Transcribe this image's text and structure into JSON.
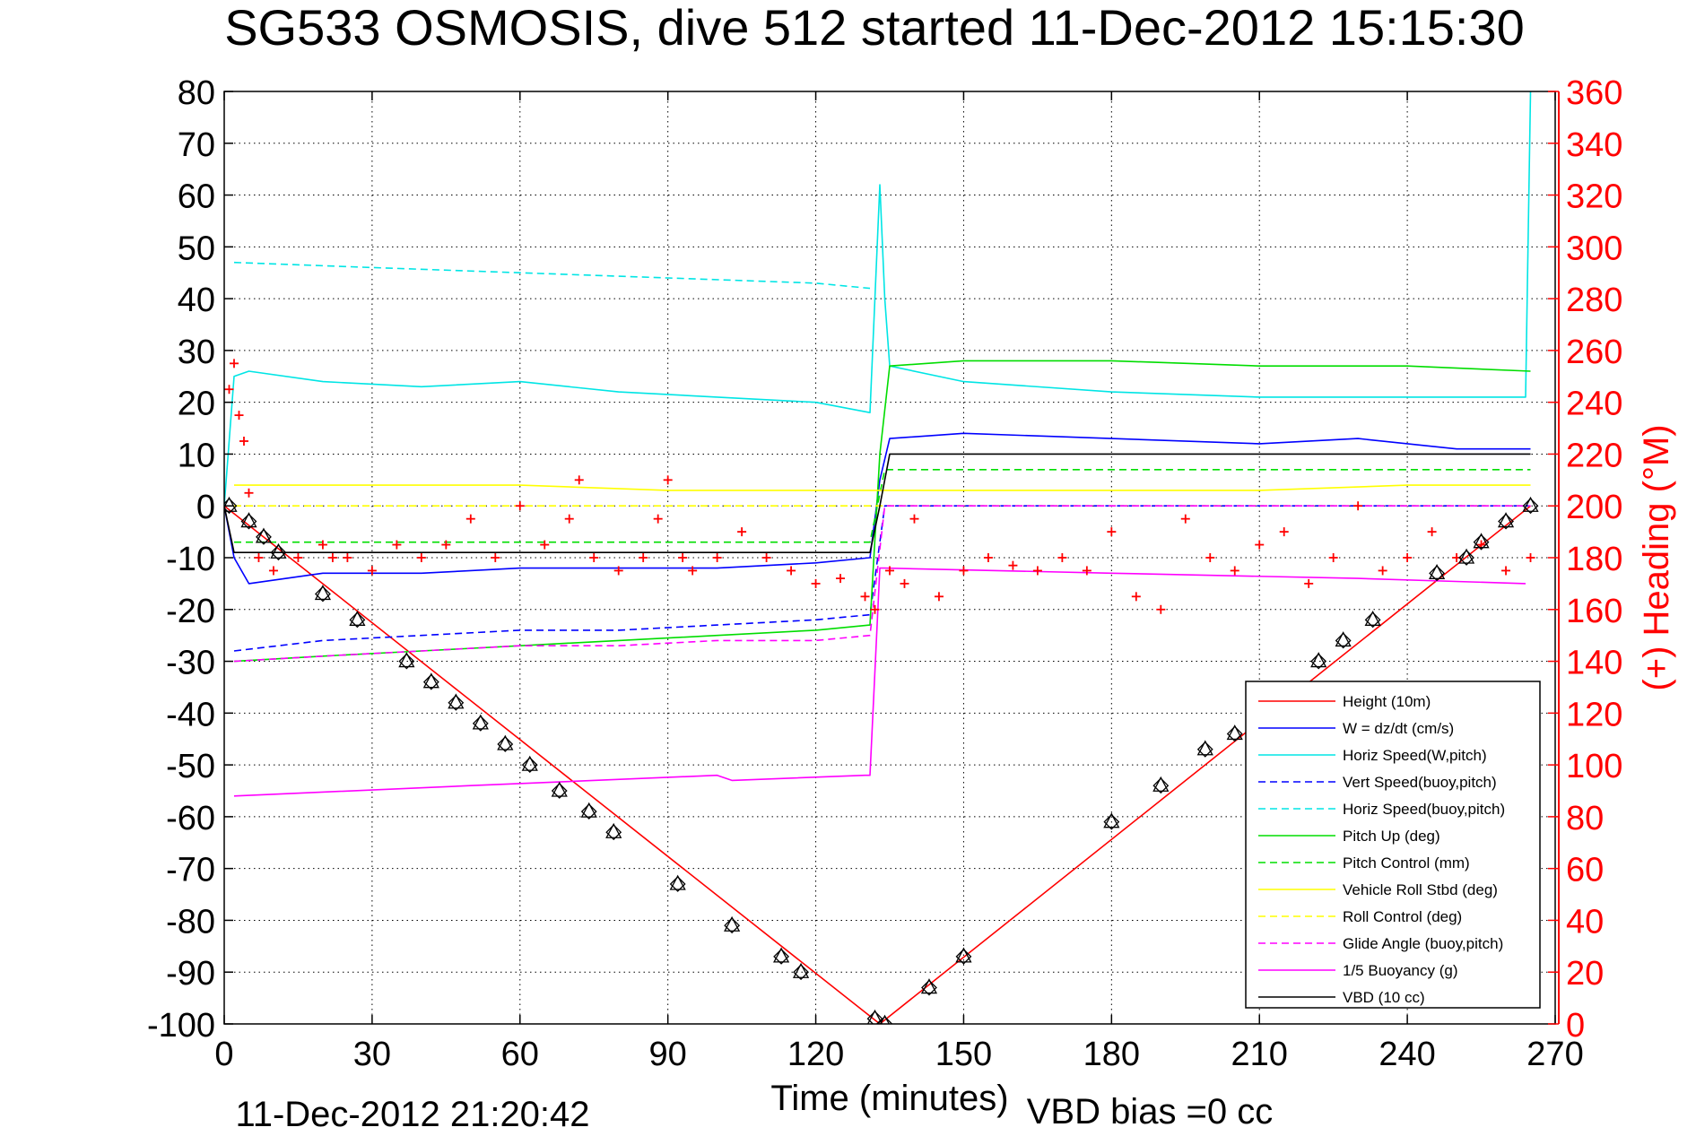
{
  "chart_data": {
    "type": "line",
    "title": "SG533 OSMOSIS, dive 512 started 11-Dec-2012 15:15:30",
    "xlabel": "Time (minutes)",
    "ylabel_right": "(+) Heading (°M)",
    "footer_timestamp": "11-Dec-2012 21:20:42",
    "footer_vbd_bias": "VBD bias =0 cc",
    "xlim": [
      0,
      270
    ],
    "ylim": [
      -100,
      80
    ],
    "ylim_right": [
      0,
      360
    ],
    "x_ticks": [
      0,
      30,
      60,
      90,
      120,
      150,
      180,
      210,
      240,
      270
    ],
    "y_ticks": [
      80,
      70,
      60,
      50,
      40,
      30,
      20,
      10,
      0,
      -10,
      -20,
      -30,
      -40,
      -50,
      -60,
      -70,
      -80,
      -90,
      -100
    ],
    "y_right_ticks": [
      360,
      340,
      320,
      300,
      280,
      260,
      240,
      220,
      200,
      180,
      160,
      140,
      120,
      100,
      80,
      60,
      40,
      20,
      0
    ],
    "grid": true,
    "legend_position": "bottom-right",
    "colors": {
      "height": "#ff0000",
      "w": "#0000ff",
      "horiz_speed": "#00e5e5",
      "pitch": "#00dd00",
      "roll": "#ffff00",
      "glide": "#ff00ff",
      "buoyancy": "#ff00ff",
      "vbd": "#000000",
      "heading": "#ff0000",
      "right_axis": "#ff0000"
    },
    "series": [
      {
        "name": "Height (10m)",
        "style": "solid",
        "color": "#ff0000",
        "x": [
          0,
          133,
          265
        ],
        "y": [
          0,
          -100,
          0
        ]
      },
      {
        "name": "W = dz/dt (cm/s)",
        "style": "solid",
        "color": "#0000ff",
        "x": [
          0,
          2,
          5,
          20,
          40,
          60,
          80,
          100,
          120,
          131,
          133,
          135,
          150,
          180,
          210,
          230,
          250,
          265
        ],
        "y": [
          0,
          -10,
          -15,
          -13,
          -13,
          -12,
          -12,
          -12,
          -11,
          -10,
          5,
          13,
          14,
          13,
          12,
          13,
          11,
          11
        ]
      },
      {
        "name": "Horiz Speed(W,pitch)",
        "style": "solid",
        "color": "#00e5e5",
        "x": [
          0,
          2,
          5,
          20,
          40,
          60,
          80,
          100,
          120,
          131,
          133,
          134,
          135,
          150,
          180,
          210,
          230,
          250,
          264,
          265
        ],
        "y": [
          0,
          25,
          26,
          24,
          23,
          24,
          22,
          21,
          20,
          18,
          62,
          40,
          27,
          24,
          22,
          21,
          21,
          21,
          21,
          80
        ]
      },
      {
        "name": "Vert Speed(buoy,pitch)",
        "style": "dashed",
        "color": "#0000ff",
        "x": [
          2,
          20,
          40,
          60,
          80,
          100,
          120,
          131,
          134,
          150,
          180,
          210,
          265
        ],
        "y": [
          -28,
          -26,
          -25,
          -24,
          -24,
          -23,
          -22,
          -21,
          0,
          0,
          0,
          0,
          0
        ]
      },
      {
        "name": "Horiz Speed(buoy,pitch)",
        "style": "dashed",
        "color": "#00e5e5",
        "x": [
          2,
          30,
          60,
          90,
          120,
          131
        ],
        "y": [
          47,
          46,
          45,
          44,
          43,
          42
        ]
      },
      {
        "name": "Pitch Up (deg)",
        "style": "solid",
        "color": "#00dd00",
        "x": [
          2,
          20,
          40,
          60,
          80,
          100,
          120,
          131,
          133,
          135,
          150,
          180,
          210,
          240,
          265
        ],
        "y": [
          -30,
          -29,
          -28,
          -27,
          -26,
          -25,
          -24,
          -23,
          10,
          27,
          28,
          28,
          27,
          27,
          26
        ]
      },
      {
        "name": "Pitch Control (mm)",
        "style": "dashed",
        "color": "#00dd00",
        "x": [
          2,
          131,
          134,
          150,
          210,
          265
        ],
        "y": [
          -7,
          -7,
          7,
          7,
          7,
          7
        ]
      },
      {
        "name": "Vehicle Roll Stbd (deg)",
        "style": "solid",
        "color": "#ffff00",
        "x": [
          2,
          30,
          60,
          90,
          120,
          131,
          134,
          150,
          180,
          210,
          240,
          265
        ],
        "y": [
          4,
          4,
          4,
          3,
          3,
          3,
          3,
          3,
          3,
          3,
          4,
          4
        ]
      },
      {
        "name": "Roll Control (deg)",
        "style": "dashed",
        "color": "#ffff00",
        "x": [
          2,
          131,
          134,
          265
        ],
        "y": [
          0,
          0,
          0,
          0
        ]
      },
      {
        "name": "Glide Angle (buoy,pitch)",
        "style": "dashed",
        "color": "#ff00ff",
        "x": [
          2,
          20,
          40,
          60,
          80,
          100,
          120,
          131,
          134,
          265
        ],
        "y": [
          -30,
          -29,
          -28,
          -27,
          -27,
          -26,
          -26,
          -25,
          0,
          0
        ]
      },
      {
        "name": "1/5 Buoyancy (g)",
        "style": "solid",
        "color": "#ff00ff",
        "x": [
          2,
          50,
          100,
          103,
          130,
          131,
          133,
          134,
          180,
          230,
          264
        ],
        "y": [
          -56,
          -54,
          -52,
          -53,
          -52,
          -52,
          -12,
          -12,
          -13,
          -14,
          -15
        ]
      },
      {
        "name": "VBD (10 cc)",
        "style": "solid",
        "color": "#000000",
        "x": [
          0,
          2,
          131,
          133,
          135,
          265
        ],
        "y": [
          0,
          -9,
          -9,
          0,
          10,
          10
        ]
      }
    ],
    "heading_marker_series": {
      "symbol": "+",
      "color": "#ff0000",
      "axis": "right",
      "x": [
        1,
        2,
        3,
        4,
        5,
        7,
        10,
        15,
        20,
        22,
        25,
        30,
        35,
        40,
        45,
        50,
        55,
        60,
        65,
        70,
        72,
        75,
        80,
        85,
        88,
        90,
        93,
        95,
        100,
        105,
        110,
        115,
        120,
        125,
        130,
        132,
        135,
        138,
        140,
        145,
        150,
        155,
        160,
        165,
        170,
        175,
        180,
        185,
        190,
        195,
        200,
        205,
        210,
        215,
        220,
        225,
        230,
        235,
        240,
        245,
        250,
        255,
        260,
        265
      ],
      "y": [
        245,
        255,
        235,
        225,
        205,
        180,
        175,
        180,
        185,
        180,
        180,
        175,
        185,
        180,
        185,
        195,
        180,
        200,
        185,
        195,
        210,
        180,
        175,
        180,
        195,
        210,
        180,
        175,
        180,
        190,
        180,
        175,
        170,
        172,
        165,
        160,
        175,
        170,
        195,
        165,
        175,
        180,
        177,
        175,
        180,
        175,
        190,
        165,
        160,
        195,
        180,
        175,
        185,
        190,
        170,
        180,
        200,
        175,
        180,
        190,
        180,
        185,
        175,
        180
      ]
    },
    "depth_markers": {
      "symbols": [
        "triangle",
        "diamond"
      ],
      "color": "#000000",
      "x": [
        1,
        5,
        8,
        11,
        20,
        27,
        37,
        42,
        47,
        52,
        57,
        62,
        68,
        74,
        79,
        92,
        103,
        113,
        117,
        132,
        134,
        143,
        150,
        180,
        190,
        199,
        205,
        212,
        222,
        227,
        233,
        246,
        252,
        255,
        260,
        265
      ],
      "y": [
        0,
        -3,
        -6,
        -9,
        -17,
        -22,
        -30,
        -34,
        -38,
        -42,
        -46,
        -50,
        -55,
        -59,
        -63,
        -73,
        -81,
        -87,
        -90,
        -99,
        -100,
        -93,
        -87,
        -61,
        -54,
        -47,
        -44,
        -41,
        -30,
        -26,
        -22,
        -13,
        -10,
        -7,
        -3,
        0
      ]
    }
  }
}
